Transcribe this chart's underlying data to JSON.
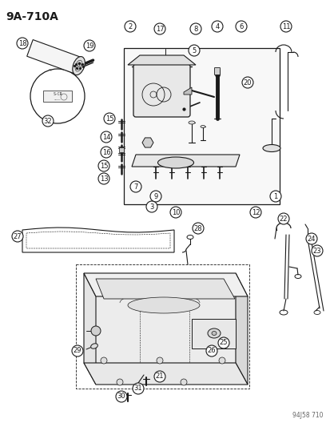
{
  "title": "9A-710A",
  "watermark": "94J58 710",
  "bg_color": "#ffffff",
  "line_color": "#1a1a1a",
  "figure_width": 4.14,
  "figure_height": 5.33,
  "dpi": 100
}
